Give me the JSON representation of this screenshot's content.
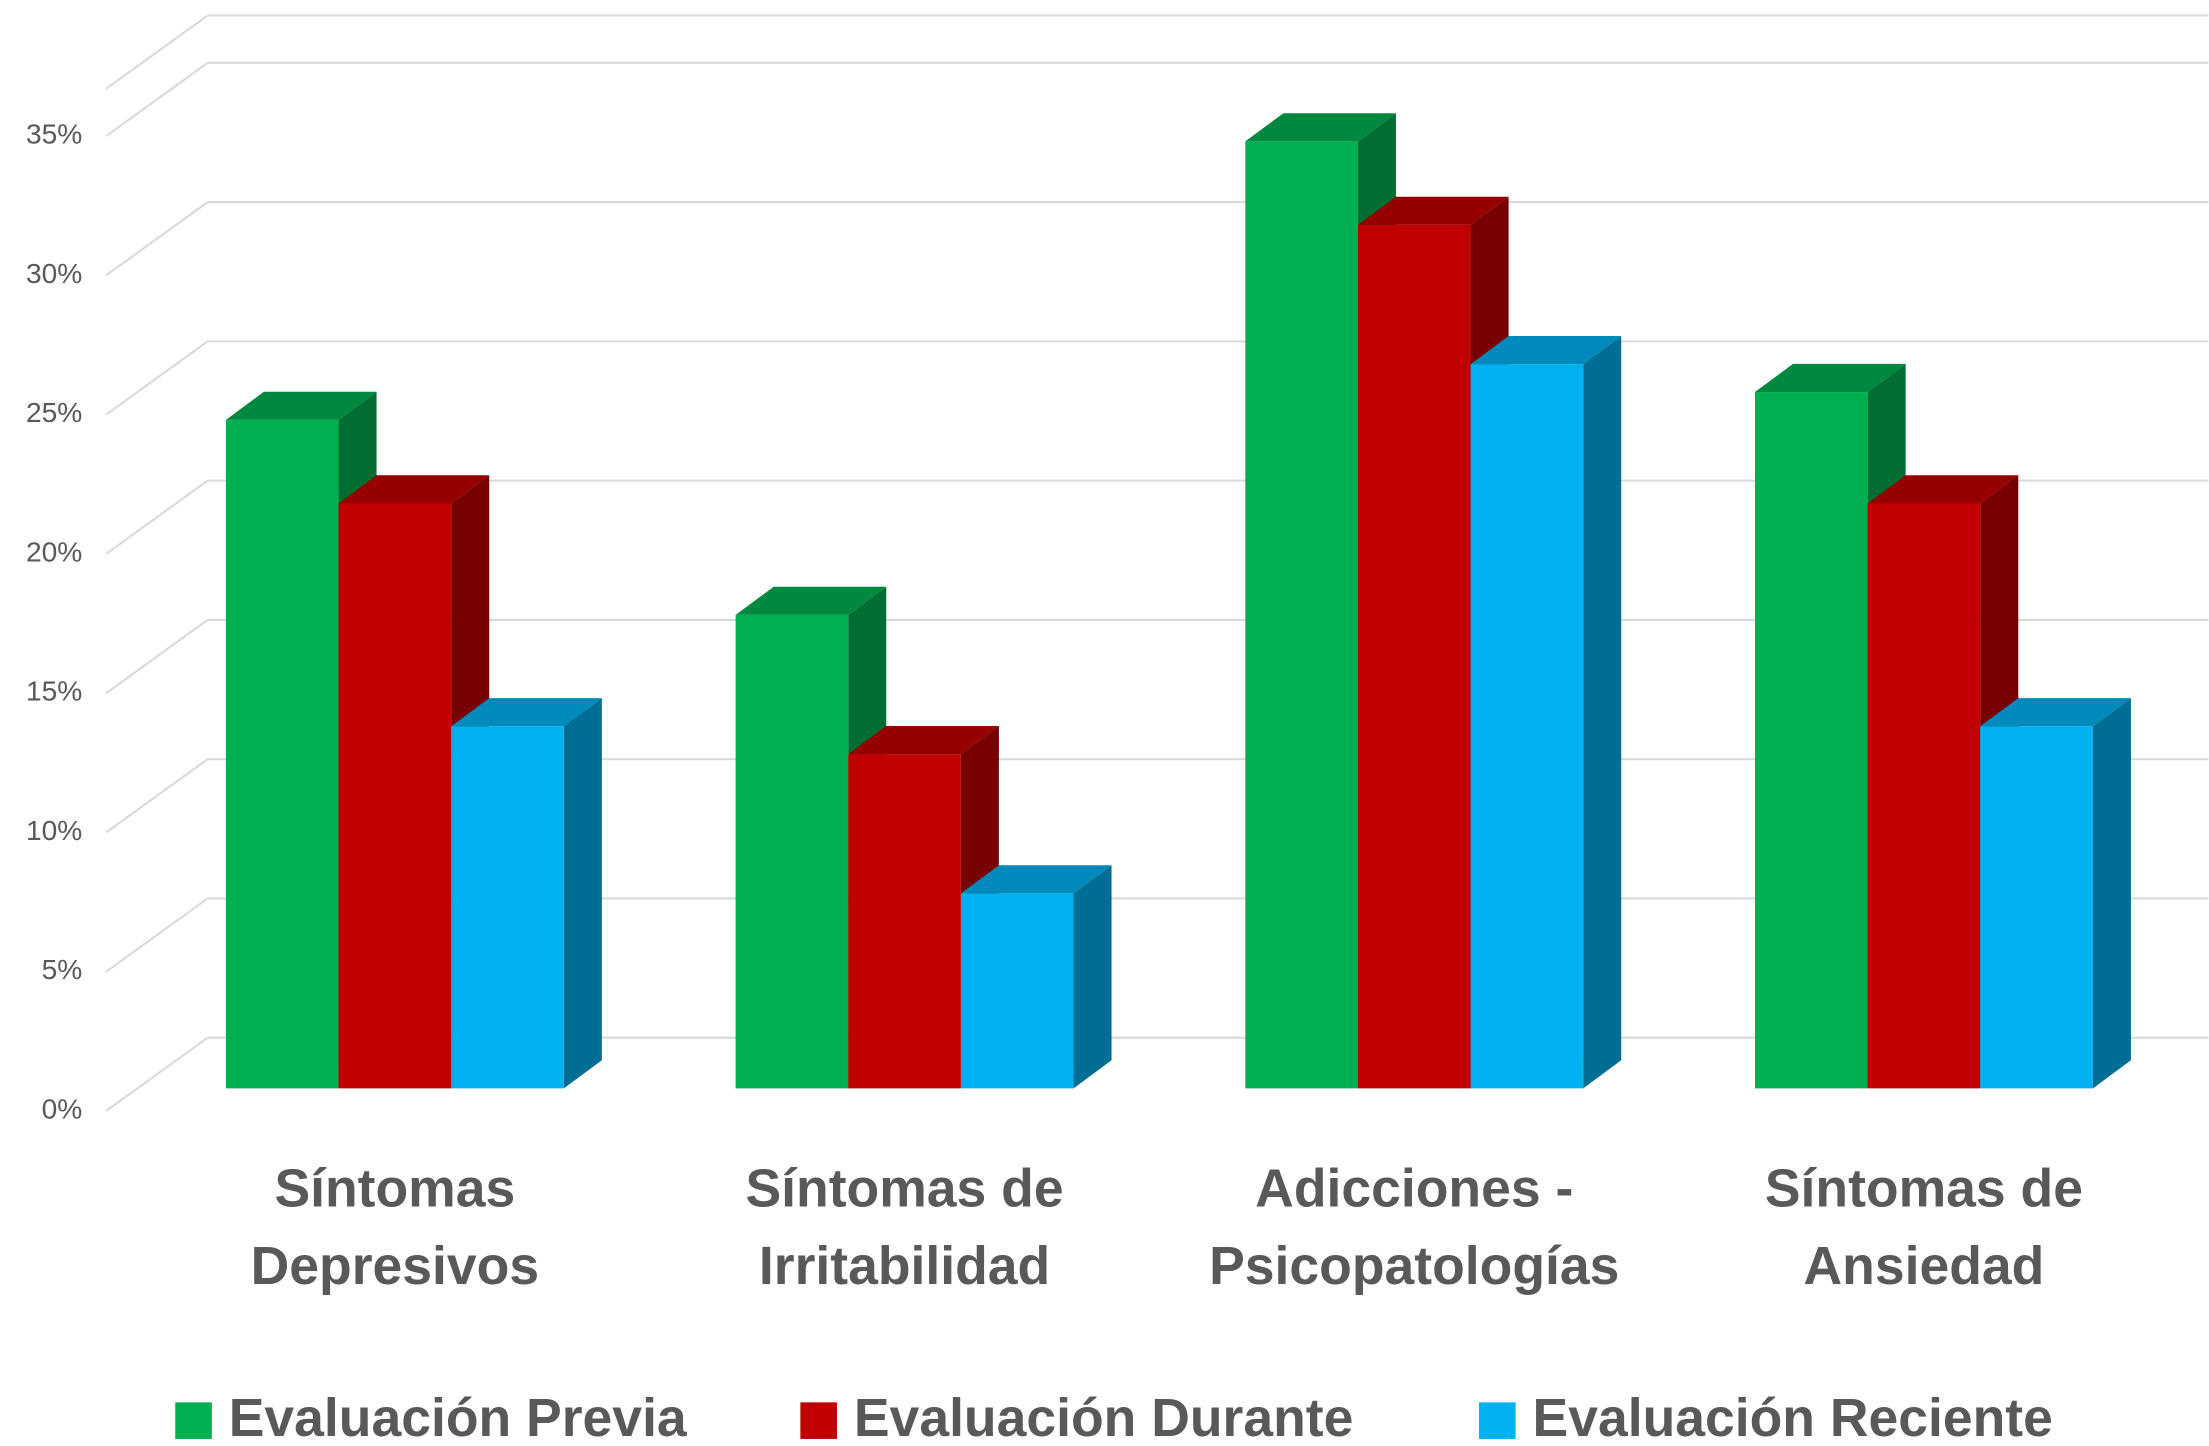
{
  "chart_data": {
    "type": "bar3d",
    "categories": [
      "Síntomas Depresivos",
      "Síntomas de Irritabilidad",
      "Adicciones - Psicopatologías",
      "Síntomas de Ansiedad"
    ],
    "series": [
      {
        "name": "Evaluación Previa",
        "color": "#00b050",
        "values": [
          24,
          17,
          34,
          25
        ]
      },
      {
        "name": "Evaluación Durante",
        "color": "#c00000",
        "values": [
          21,
          12,
          31,
          21
        ]
      },
      {
        "name": "Evaluación Reciente",
        "color": "#00b0f0",
        "values": [
          13,
          7,
          26,
          13
        ]
      }
    ],
    "ylim": [
      0,
      36.7
    ],
    "yticks": [
      {
        "value": 0,
        "label": "0%"
      },
      {
        "value": 5,
        "label": "5%"
      },
      {
        "value": 10,
        "label": "10%"
      },
      {
        "value": 15,
        "label": "15%"
      },
      {
        "value": 20,
        "label": "20%"
      },
      {
        "value": 25,
        "label": "25%"
      },
      {
        "value": 30,
        "label": "30%"
      },
      {
        "value": 35,
        "label": "35%"
      }
    ],
    "grid": true
  }
}
